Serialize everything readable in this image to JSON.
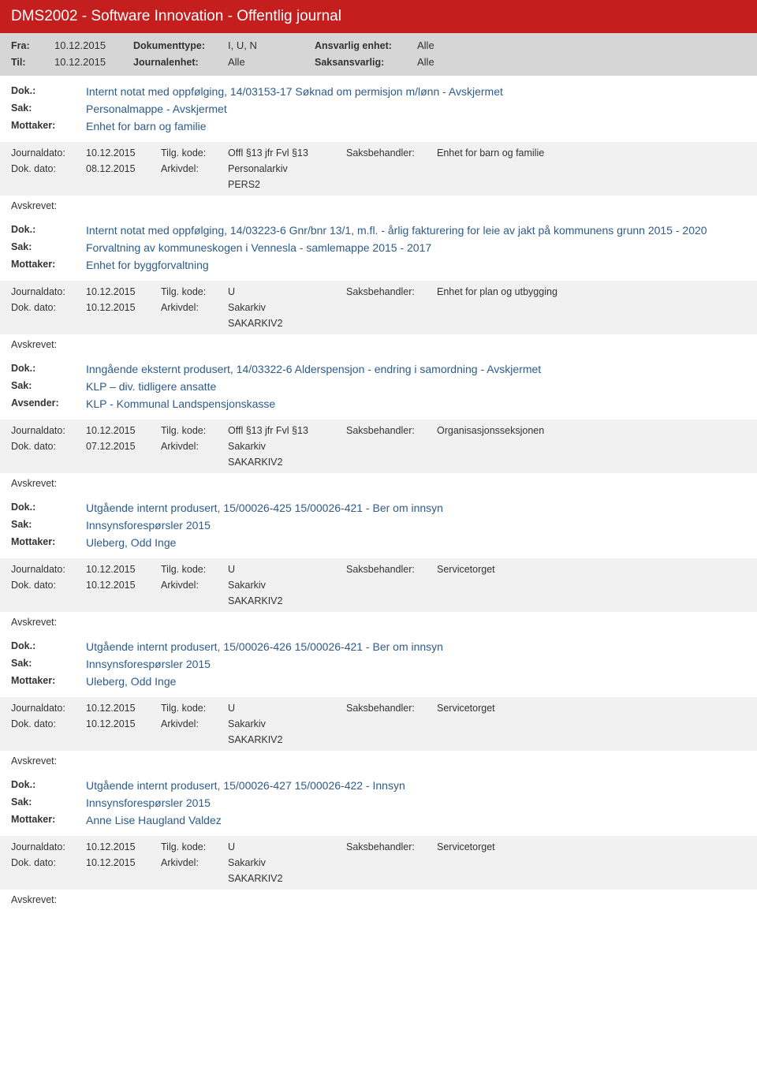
{
  "header": {
    "title": "DMS2002 - Software Innovation - Offentlig journal"
  },
  "filter": {
    "fra_label": "Fra:",
    "fra_value": "10.12.2015",
    "til_label": "Til:",
    "til_value": "10.12.2015",
    "doktype_label": "Dokumenttype:",
    "doktype_value": "I, U, N",
    "journal_label": "Journalenhet:",
    "journal_value": "Alle",
    "ansvarlig_label": "Ansvarlig enhet:",
    "ansvarlig_value": "Alle",
    "saksansv_label": "Saksansvarlig:",
    "saksansv_value": "Alle"
  },
  "labels": {
    "dok": "Dok.:",
    "sak": "Sak:",
    "mottaker": "Mottaker:",
    "avsender": "Avsender:",
    "journaldato": "Journaldato:",
    "tilg": "Tilg. kode:",
    "saksbeh": "Saksbehandler:",
    "dokdato": "Dok. dato:",
    "arkivdel": "Arkivdel:",
    "avskrevet": "Avskrevet:"
  },
  "entries": [
    {
      "dok": "Internt notat med oppfølging, 14/03153-17 Søknad om permisjon m/lønn - Avskjermet",
      "sak": "Personalmappe - Avskjermet",
      "party_label": "Mottaker:",
      "party": "Enhet for barn og familie",
      "journaldato": "10.12.2015",
      "tilg": "Offl §13 jfr Fvl §13",
      "saksbeh": "Enhet for barn og familie",
      "dokdato": "08.12.2015",
      "arkivdel": "Personalarkiv",
      "arkivdel2": "PERS2"
    },
    {
      "dok": "Internt notat med oppfølging, 14/03223-6 Gnr/bnr 13/1, m.fl. - årlig fakturering for leie av jakt på kommunens grunn 2015 - 2020",
      "sak": "Forvaltning av kommuneskogen i Vennesla - samlemappe 2015 - 2017",
      "party_label": "Mottaker:",
      "party": "Enhet for byggforvaltning",
      "journaldato": "10.12.2015",
      "tilg": "U",
      "saksbeh": "Enhet for plan og utbygging",
      "dokdato": "10.12.2015",
      "arkivdel": "Sakarkiv",
      "arkivdel2": "SAKARKIV2"
    },
    {
      "dok": "Inngående eksternt produsert, 14/03322-6 Alderspensjon - endring i samordning - Avskjermet",
      "sak": "KLP – div. tidligere ansatte",
      "party_label": "Avsender:",
      "party": "KLP - Kommunal Landspensjonskasse",
      "journaldato": "10.12.2015",
      "tilg": "Offl §13 jfr Fvl §13",
      "saksbeh": "Organisasjonsseksjonen",
      "dokdato": "07.12.2015",
      "arkivdel": "Sakarkiv",
      "arkivdel2": "SAKARKIV2"
    },
    {
      "dok": "Utgående internt produsert, 15/00026-425 15/00026-421 - Ber om innsyn",
      "sak": "Innsynsforespørsler 2015",
      "party_label": "Mottaker:",
      "party": "Uleberg, Odd Inge",
      "journaldato": "10.12.2015",
      "tilg": "U",
      "saksbeh": "Servicetorget",
      "dokdato": "10.12.2015",
      "arkivdel": "Sakarkiv",
      "arkivdel2": "SAKARKIV2"
    },
    {
      "dok": "Utgående internt produsert, 15/00026-426 15/00026-421 - Ber om innsyn",
      "sak": "Innsynsforespørsler 2015",
      "party_label": "Mottaker:",
      "party": "Uleberg, Odd Inge",
      "journaldato": "10.12.2015",
      "tilg": "U",
      "saksbeh": "Servicetorget",
      "dokdato": "10.12.2015",
      "arkivdel": "Sakarkiv",
      "arkivdel2": "SAKARKIV2"
    },
    {
      "dok": "Utgående internt produsert, 15/00026-427 15/00026-422 - Innsyn",
      "sak": "Innsynsforespørsler 2015",
      "party_label": "Mottaker:",
      "party": "Anne Lise Haugland Valdez",
      "journaldato": "10.12.2015",
      "tilg": "U",
      "saksbeh": "Servicetorget",
      "dokdato": "10.12.2015",
      "arkivdel": "Sakarkiv",
      "arkivdel2": "SAKARKIV2"
    }
  ]
}
